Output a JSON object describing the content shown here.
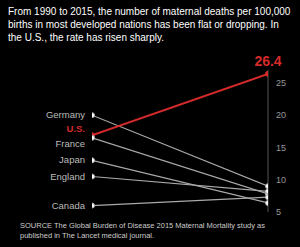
{
  "chart_data": {
    "type": "line",
    "title": "From 1990 to 2015, the number of maternal deaths per 100,000 births in most developed nations has been flat or dropping. In the U.S., the rate has risen sharply.",
    "source": "SOURCE The Global Burden of Disease 2015 Maternal Mortality study as published in The Lancet medical journal.",
    "x": [
      1990,
      2015
    ],
    "xlim": [
      1990,
      2015
    ],
    "ylim": [
      5,
      27
    ],
    "yticks": [
      5,
      10,
      15,
      20,
      25
    ],
    "tick_labels": "y",
    "grid": false,
    "series": [
      {
        "name": "Germany",
        "color": "#aaaaaa",
        "values": [
          20,
          9.0
        ]
      },
      {
        "name": "U.S.",
        "color": "#d42a2a",
        "values": [
          16.9,
          26.4
        ],
        "value_labels": [
          null,
          "26.4"
        ]
      },
      {
        "name": "France",
        "color": "#aaaaaa",
        "values": [
          16.5,
          7.8
        ]
      },
      {
        "name": "Japan",
        "color": "#aaaaaa",
        "values": [
          13,
          6.4
        ]
      },
      {
        "name": "England",
        "color": "#aaaaaa",
        "values": [
          10.5,
          8.2
        ]
      },
      {
        "name": "Canada",
        "color": "#aaaaaa",
        "values": [
          6,
          7.3
        ]
      }
    ]
  }
}
